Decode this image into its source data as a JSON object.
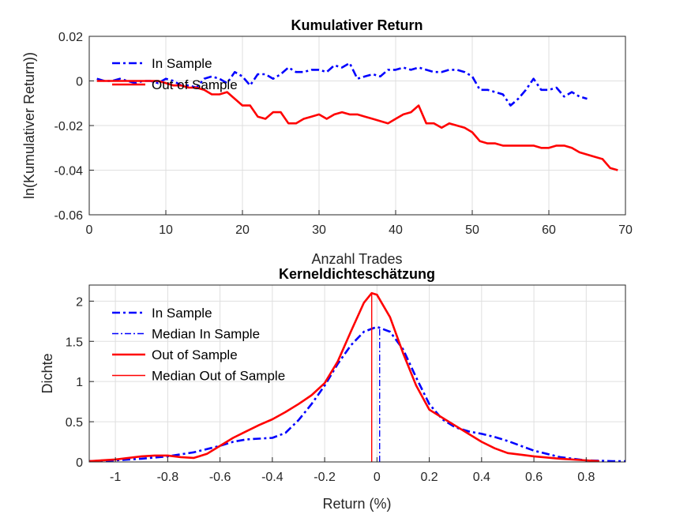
{
  "chart_data": [
    {
      "type": "line",
      "title": "Kumulativer Return",
      "xlabel": "Anzahl Trades",
      "ylabel": "ln(Kumulativer Return))",
      "xlim": [
        0,
        70
      ],
      "ylim": [
        -0.06,
        0.02
      ],
      "xticks": [
        "0",
        "10",
        "20",
        "30",
        "40",
        "50",
        "60",
        "70"
      ],
      "yticks": [
        "-0.06",
        "-0.04",
        "-0.02",
        "0",
        "0.02"
      ],
      "grid": true,
      "legend_position": "top-left",
      "series": [
        {
          "name": "In Sample",
          "color": "#0000ff",
          "style": "dash-dot",
          "x": [
            1,
            2,
            3,
            4,
            5,
            6,
            7,
            8,
            9,
            10,
            11,
            12,
            13,
            14,
            15,
            16,
            17,
            18,
            19,
            20,
            21,
            22,
            23,
            24,
            25,
            26,
            27,
            28,
            29,
            30,
            31,
            32,
            33,
            34,
            35,
            36,
            37,
            38,
            39,
            40,
            41,
            42,
            43,
            44,
            45,
            46,
            47,
            48,
            49,
            50,
            51,
            52,
            53,
            54,
            55,
            56,
            57,
            58,
            59,
            60,
            61,
            62,
            63,
            64,
            65
          ],
          "y": [
            0.001,
            0.0,
            0.0,
            0.001,
            0.0,
            -0.001,
            0.0,
            0.0,
            -0.001,
            0.001,
            0.0,
            -0.002,
            -0.002,
            -0.003,
            0.001,
            0.002,
            0.001,
            -0.001,
            0.004,
            0.002,
            -0.002,
            0.003,
            0.003,
            0.001,
            0.003,
            0.006,
            0.004,
            0.004,
            0.005,
            0.005,
            0.004,
            0.007,
            0.006,
            0.008,
            0.001,
            0.002,
            0.003,
            0.002,
            0.005,
            0.005,
            0.006,
            0.005,
            0.006,
            0.005,
            0.004,
            0.004,
            0.005,
            0.005,
            0.004,
            0.002,
            -0.004,
            -0.004,
            -0.005,
            -0.006,
            -0.011,
            -0.008,
            -0.004,
            0.001,
            -0.004,
            -0.004,
            -0.003,
            -0.007,
            -0.005,
            -0.007,
            -0.008
          ]
        },
        {
          "name": "Out of Sample",
          "color": "#ff0000",
          "style": "solid",
          "x": [
            1,
            2,
            3,
            4,
            5,
            6,
            7,
            8,
            9,
            10,
            11,
            12,
            13,
            14,
            15,
            16,
            17,
            18,
            19,
            20,
            21,
            22,
            23,
            24,
            25,
            26,
            27,
            28,
            29,
            30,
            31,
            32,
            33,
            34,
            35,
            36,
            37,
            38,
            39,
            40,
            41,
            42,
            43,
            44,
            45,
            46,
            47,
            48,
            49,
            50,
            51,
            52,
            53,
            54,
            55,
            56,
            57,
            58,
            59,
            60,
            61,
            62,
            63,
            64,
            65,
            66,
            67,
            68,
            69
          ],
          "y": [
            0.0,
            0.0,
            0.0,
            0.0,
            0.0,
            0.0,
            0.0,
            0.0,
            0.0,
            -0.001,
            -0.002,
            -0.002,
            -0.003,
            -0.003,
            -0.004,
            -0.006,
            -0.006,
            -0.005,
            -0.008,
            -0.011,
            -0.011,
            -0.016,
            -0.017,
            -0.014,
            -0.014,
            -0.019,
            -0.019,
            -0.017,
            -0.016,
            -0.015,
            -0.017,
            -0.015,
            -0.014,
            -0.015,
            -0.015,
            -0.016,
            -0.017,
            -0.018,
            -0.019,
            -0.017,
            -0.015,
            -0.014,
            -0.011,
            -0.019,
            -0.019,
            -0.021,
            -0.019,
            -0.02,
            -0.021,
            -0.023,
            -0.027,
            -0.028,
            -0.028,
            -0.029,
            -0.029,
            -0.029,
            -0.029,
            -0.029,
            -0.03,
            -0.03,
            -0.029,
            -0.029,
            -0.03,
            -0.032,
            -0.033,
            -0.034,
            -0.035,
            -0.039,
            -0.04
          ]
        }
      ]
    },
    {
      "type": "line",
      "title": "Kerneldichteschätzung",
      "xlabel": "Return (%)",
      "ylabel": "Dichte",
      "xlim": [
        -1.1,
        0.95
      ],
      "ylim": [
        0,
        2.2
      ],
      "xticks": [
        "-1",
        "-0.8",
        "-0.6",
        "-0.4",
        "-0.2",
        "0",
        "0.2",
        "0.4",
        "0.6",
        "0.8"
      ],
      "yticks": [
        "0",
        "0.5",
        "1",
        "1.5",
        "2"
      ],
      "grid": true,
      "legend_position": "top-left",
      "series": [
        {
          "name": "In Sample",
          "color": "#0000ff",
          "style": "dash-dot",
          "x": [
            -1.1,
            -1.0,
            -0.9,
            -0.8,
            -0.7,
            -0.6,
            -0.55,
            -0.5,
            -0.45,
            -0.4,
            -0.35,
            -0.3,
            -0.25,
            -0.2,
            -0.15,
            -0.1,
            -0.05,
            0.0,
            0.05,
            0.1,
            0.15,
            0.2,
            0.25,
            0.3,
            0.35,
            0.4,
            0.45,
            0.5,
            0.55,
            0.6,
            0.7,
            0.8,
            0.9,
            0.95
          ],
          "y": [
            0.01,
            0.02,
            0.04,
            0.07,
            0.12,
            0.2,
            0.25,
            0.28,
            0.29,
            0.3,
            0.36,
            0.52,
            0.72,
            0.95,
            1.22,
            1.45,
            1.62,
            1.68,
            1.62,
            1.4,
            1.05,
            0.72,
            0.53,
            0.43,
            0.38,
            0.35,
            0.31,
            0.26,
            0.2,
            0.14,
            0.06,
            0.02,
            0.01,
            0.01
          ]
        },
        {
          "name": "Median In Sample",
          "color": "#0000ff",
          "style": "dash-dot",
          "x": [
            0.01,
            0.01
          ],
          "y": [
            0,
            1.68
          ]
        },
        {
          "name": "Out of Sample",
          "color": "#ff0000",
          "style": "solid",
          "x": [
            -1.1,
            -1.0,
            -0.9,
            -0.85,
            -0.8,
            -0.75,
            -0.7,
            -0.65,
            -0.6,
            -0.55,
            -0.5,
            -0.45,
            -0.4,
            -0.35,
            -0.3,
            -0.25,
            -0.2,
            -0.15,
            -0.1,
            -0.05,
            -0.02,
            0.0,
            0.05,
            0.1,
            0.15,
            0.2,
            0.25,
            0.3,
            0.35,
            0.4,
            0.45,
            0.5,
            0.55,
            0.6,
            0.7,
            0.8,
            0.85
          ],
          "y": [
            0.01,
            0.03,
            0.07,
            0.08,
            0.08,
            0.06,
            0.05,
            0.1,
            0.2,
            0.3,
            0.38,
            0.46,
            0.53,
            0.62,
            0.72,
            0.83,
            0.98,
            1.25,
            1.62,
            1.98,
            2.1,
            2.08,
            1.8,
            1.35,
            0.95,
            0.65,
            0.55,
            0.45,
            0.35,
            0.25,
            0.17,
            0.11,
            0.09,
            0.07,
            0.04,
            0.02,
            0.01
          ]
        },
        {
          "name": "Median Out of Sample",
          "color": "#ff0000",
          "style": "solid",
          "x": [
            -0.02,
            -0.02
          ],
          "y": [
            0,
            2.1
          ]
        }
      ]
    }
  ]
}
